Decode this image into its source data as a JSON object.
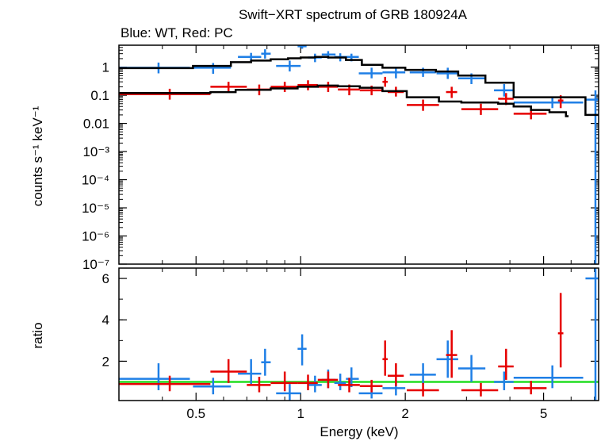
{
  "chart_data": {
    "type": "scatter",
    "title": "Swift−XRT spectrum of GRB 180924A",
    "subtitle": "Blue: WT, Red: PC",
    "xlabel": "Energy (keV)",
    "x_scale": "log",
    "xlim": [
      0.3,
      7.2
    ],
    "x_ticks": [
      {
        "value": 0.5,
        "label": "0.5"
      },
      {
        "value": 1,
        "label": "1"
      },
      {
        "value": 2,
        "label": "2"
      },
      {
        "value": 5,
        "label": "5"
      }
    ],
    "panels": [
      {
        "name": "spectrum",
        "ylabel": "counts s⁻¹ keV⁻¹",
        "y_scale": "log",
        "ylim": [
          1e-07,
          6
        ],
        "y_ticks": [
          {
            "value": 1,
            "label": "1"
          },
          {
            "value": 0.1,
            "label": "0.1"
          },
          {
            "value": 0.01,
            "label": "0.01"
          },
          {
            "value": 0.001,
            "label": "10⁻³"
          },
          {
            "value": 0.0001,
            "label": "10⁻⁴"
          },
          {
            "value": 1e-05,
            "label": "10⁻⁵"
          },
          {
            "value": 1e-06,
            "label": "10⁻⁶"
          },
          {
            "value": 1e-07,
            "label": "10⁻⁷"
          }
        ],
        "series": [
          {
            "color": "#1f7fe6",
            "points": [
              {
                "x": 0.39,
                "x_lo": 0.3,
                "x_hi": 0.48,
                "y": 0.95,
                "y_lo": 0.6,
                "y_hi": 1.45
              },
              {
                "x": 0.56,
                "x_lo": 0.49,
                "x_hi": 0.63,
                "y": 0.95,
                "y_lo": 0.58,
                "y_hi": 1.4
              },
              {
                "x": 0.72,
                "x_lo": 0.66,
                "x_hi": 0.77,
                "y": 2.3,
                "y_lo": 1.6,
                "y_hi": 3.2
              },
              {
                "x": 0.79,
                "x_lo": 0.77,
                "x_hi": 0.82,
                "y": 3.0,
                "y_lo": 2.0,
                "y_hi": 4.3
              },
              {
                "x": 0.93,
                "x_lo": 0.85,
                "x_hi": 1.0,
                "y": 1.1,
                "y_lo": 0.7,
                "y_hi": 1.7
              },
              {
                "x": 1.01,
                "x_lo": 0.98,
                "x_hi": 1.04,
                "y": 5.5,
                "y_lo": 4.5,
                "y_hi": 6.5
              },
              {
                "x": 1.1,
                "x_lo": 1.05,
                "x_hi": 1.15,
                "y": 2.2,
                "y_lo": 1.5,
                "y_hi": 3.0
              },
              {
                "x": 1.2,
                "x_lo": 1.15,
                "x_hi": 1.26,
                "y": 2.8,
                "y_lo": 2.0,
                "y_hi": 3.7
              },
              {
                "x": 1.3,
                "x_lo": 1.25,
                "x_hi": 1.35,
                "y": 2.3,
                "y_lo": 1.6,
                "y_hi": 3.1
              },
              {
                "x": 1.4,
                "x_lo": 1.35,
                "x_hi": 1.47,
                "y": 2.3,
                "y_lo": 1.6,
                "y_hi": 3.0
              },
              {
                "x": 1.6,
                "x_lo": 1.47,
                "x_hi": 1.72,
                "y": 0.6,
                "y_lo": 0.4,
                "y_hi": 0.95
              },
              {
                "x": 1.88,
                "x_lo": 1.72,
                "x_hi": 2.0,
                "y": 0.65,
                "y_lo": 0.4,
                "y_hi": 1.0
              },
              {
                "x": 2.25,
                "x_lo": 2.06,
                "x_hi": 2.45,
                "y": 0.65,
                "y_lo": 0.45,
                "y_hi": 0.95
              },
              {
                "x": 2.65,
                "x_lo": 2.46,
                "x_hi": 2.84,
                "y": 0.6,
                "y_lo": 0.38,
                "y_hi": 0.95
              },
              {
                "x": 3.1,
                "x_lo": 2.84,
                "x_hi": 3.4,
                "y": 0.4,
                "y_lo": 0.25,
                "y_hi": 0.6
              },
              {
                "x": 3.85,
                "x_lo": 3.6,
                "x_hi": 4.1,
                "y": 0.15,
                "y_lo": 0.09,
                "y_hi": 0.25
              },
              {
                "x": 5.3,
                "x_lo": 4.1,
                "x_hi": 6.5,
                "y": 0.055,
                "y_lo": 0.035,
                "y_hi": 0.085
              },
              {
                "x": 7.05,
                "x_lo": 6.6,
                "x_hi": 7.2,
                "y": 0.07,
                "y_lo": 1e-07,
                "y_hi": 0.15
              }
            ]
          },
          {
            "color": "#e60000",
            "points": [
              {
                "x": 0.42,
                "x_lo": 0.3,
                "x_hi": 0.55,
                "y": 0.11,
                "y_lo": 0.07,
                "y_hi": 0.17
              },
              {
                "x": 0.62,
                "x_lo": 0.55,
                "x_hi": 0.7,
                "y": 0.2,
                "y_lo": 0.13,
                "y_hi": 0.3
              },
              {
                "x": 0.76,
                "x_lo": 0.7,
                "x_hi": 0.82,
                "y": 0.16,
                "y_lo": 0.1,
                "y_hi": 0.24
              },
              {
                "x": 0.9,
                "x_lo": 0.82,
                "x_hi": 0.98,
                "y": 0.2,
                "y_lo": 0.13,
                "y_hi": 0.3
              },
              {
                "x": 1.05,
                "x_lo": 0.98,
                "x_hi": 1.12,
                "y": 0.23,
                "y_lo": 0.15,
                "y_hi": 0.34
              },
              {
                "x": 1.2,
                "x_lo": 1.12,
                "x_hi": 1.28,
                "y": 0.2,
                "y_lo": 0.13,
                "y_hi": 0.3
              },
              {
                "x": 1.38,
                "x_lo": 1.28,
                "x_hi": 1.48,
                "y": 0.16,
                "y_lo": 0.1,
                "y_hi": 0.24
              },
              {
                "x": 1.6,
                "x_lo": 1.48,
                "x_hi": 1.72,
                "y": 0.15,
                "y_lo": 0.1,
                "y_hi": 0.22
              },
              {
                "x": 1.75,
                "x_lo": 1.72,
                "x_hi": 1.78,
                "y": 0.3,
                "y_lo": 0.2,
                "y_hi": 0.45
              },
              {
                "x": 1.88,
                "x_lo": 1.78,
                "x_hi": 1.98,
                "y": 0.13,
                "y_lo": 0.09,
                "y_hi": 0.2
              },
              {
                "x": 2.25,
                "x_lo": 2.02,
                "x_hi": 2.5,
                "y": 0.045,
                "y_lo": 0.028,
                "y_hi": 0.07
              },
              {
                "x": 2.72,
                "x_lo": 2.62,
                "x_hi": 2.82,
                "y": 0.13,
                "y_lo": 0.08,
                "y_hi": 0.2
              },
              {
                "x": 3.3,
                "x_lo": 2.9,
                "x_hi": 3.7,
                "y": 0.032,
                "y_lo": 0.02,
                "y_hi": 0.05
              },
              {
                "x": 3.9,
                "x_lo": 3.7,
                "x_hi": 4.1,
                "y": 0.075,
                "y_lo": 0.045,
                "y_hi": 0.12
              },
              {
                "x": 4.6,
                "x_lo": 4.1,
                "x_hi": 5.1,
                "y": 0.022,
                "y_lo": 0.014,
                "y_hi": 0.035
              },
              {
                "x": 5.6,
                "x_lo": 5.5,
                "x_hi": 5.7,
                "y": 0.065,
                "y_lo": 0.035,
                "y_hi": 0.1
              }
            ]
          },
          {
            "type": "step",
            "color": "#000000",
            "points": [
              [
                0.3,
                0.92
              ],
              [
                0.49,
                1.1
              ],
              [
                0.63,
                1.5
              ],
              [
                0.72,
                1.7
              ],
              [
                0.82,
                1.9
              ],
              [
                0.92,
                2.05
              ],
              [
                1.0,
                2.2
              ],
              [
                1.1,
                2.3
              ],
              [
                1.2,
                2.2
              ],
              [
                1.35,
                1.8
              ],
              [
                1.5,
                1.2
              ],
              [
                1.72,
                0.95
              ],
              [
                2.0,
                0.8
              ],
              [
                2.45,
                0.7
              ],
              [
                2.84,
                0.5
              ],
              [
                3.4,
                0.28
              ],
              [
                4.1,
                0.085
              ],
              [
                6.6,
                0.02
              ],
              [
                7.2,
                0.02
              ]
            ]
          },
          {
            "type": "step",
            "color": "#000000",
            "points": [
              [
                0.3,
                0.12
              ],
              [
                0.55,
                0.13
              ],
              [
                0.65,
                0.155
              ],
              [
                0.82,
                0.175
              ],
              [
                0.98,
                0.2
              ],
              [
                1.12,
                0.22
              ],
              [
                1.28,
                0.21
              ],
              [
                1.48,
                0.185
              ],
              [
                1.72,
                0.14
              ],
              [
                2.02,
                0.085
              ],
              [
                2.5,
                0.06
              ],
              [
                2.9,
                0.055
              ],
              [
                3.7,
                0.05
              ],
              [
                4.1,
                0.04
              ],
              [
                4.6,
                0.03
              ],
              [
                5.2,
                0.025
              ],
              [
                5.8,
                0.018
              ],
              [
                5.9,
                0.018
              ]
            ]
          }
        ]
      },
      {
        "name": "ratio",
        "ylabel": "ratio",
        "y_scale": "linear",
        "ylim": [
          0.1,
          6.5
        ],
        "y_ticks": [
          {
            "value": 2,
            "label": "2"
          },
          {
            "value": 4,
            "label": "4"
          },
          {
            "value": 6,
            "label": "6"
          }
        ],
        "reference_line": {
          "y": 1.0,
          "color": "#22dd22"
        },
        "series": [
          {
            "color": "#1f7fe6",
            "points": [
              {
                "x": 0.39,
                "x_lo": 0.3,
                "x_hi": 0.48,
                "y": 1.15,
                "y_lo": 0.6,
                "y_hi": 1.9
              },
              {
                "x": 0.56,
                "x_lo": 0.49,
                "x_hi": 0.63,
                "y": 0.78,
                "y_lo": 0.4,
                "y_hi": 1.2
              },
              {
                "x": 0.72,
                "x_lo": 0.66,
                "x_hi": 0.77,
                "y": 1.4,
                "y_lo": 0.9,
                "y_hi": 2.1
              },
              {
                "x": 0.79,
                "x_lo": 0.77,
                "x_hi": 0.82,
                "y": 1.95,
                "y_lo": 1.3,
                "y_hi": 2.6
              },
              {
                "x": 0.93,
                "x_lo": 0.85,
                "x_hi": 1.0,
                "y": 0.45,
                "y_lo": 0.1,
                "y_hi": 0.9
              },
              {
                "x": 1.01,
                "x_lo": 0.98,
                "x_hi": 1.04,
                "y": 2.6,
                "y_lo": 1.8,
                "y_hi": 3.3
              },
              {
                "x": 1.1,
                "x_lo": 1.05,
                "x_hi": 1.15,
                "y": 0.85,
                "y_lo": 0.5,
                "y_hi": 1.3
              },
              {
                "x": 1.2,
                "x_lo": 1.15,
                "x_hi": 1.26,
                "y": 1.1,
                "y_lo": 0.7,
                "y_hi": 1.6
              },
              {
                "x": 1.3,
                "x_lo": 1.25,
                "x_hi": 1.35,
                "y": 0.95,
                "y_lo": 0.6,
                "y_hi": 1.4
              },
              {
                "x": 1.4,
                "x_lo": 1.35,
                "x_hi": 1.47,
                "y": 1.15,
                "y_lo": 0.75,
                "y_hi": 1.7
              },
              {
                "x": 1.6,
                "x_lo": 1.47,
                "x_hi": 1.72,
                "y": 0.45,
                "y_lo": 0.2,
                "y_hi": 0.8
              },
              {
                "x": 1.88,
                "x_lo": 1.72,
                "x_hi": 2.0,
                "y": 0.7,
                "y_lo": 0.35,
                "y_hi": 1.1
              },
              {
                "x": 2.25,
                "x_lo": 2.06,
                "x_hi": 2.45,
                "y": 1.35,
                "y_lo": 0.9,
                "y_hi": 1.9
              },
              {
                "x": 2.65,
                "x_lo": 2.46,
                "x_hi": 2.84,
                "y": 2.1,
                "y_lo": 1.2,
                "y_hi": 3.0
              },
              {
                "x": 3.1,
                "x_lo": 2.84,
                "x_hi": 3.4,
                "y": 1.65,
                "y_lo": 1.0,
                "y_hi": 2.3
              },
              {
                "x": 3.85,
                "x_lo": 3.6,
                "x_hi": 4.1,
                "y": 1.0,
                "y_lo": 0.6,
                "y_hi": 1.5
              },
              {
                "x": 5.3,
                "x_lo": 4.1,
                "x_hi": 6.5,
                "y": 1.2,
                "y_lo": 0.7,
                "y_hi": 1.8
              },
              {
                "x": 7.05,
                "x_lo": 6.6,
                "x_hi": 7.2,
                "y": 6.0,
                "y_lo": 0.1,
                "y_hi": 6.5
              }
            ]
          },
          {
            "color": "#e60000",
            "points": [
              {
                "x": 0.42,
                "x_lo": 0.3,
                "x_hi": 0.55,
                "y": 0.9,
                "y_lo": 0.55,
                "y_hi": 1.3
              },
              {
                "x": 0.62,
                "x_lo": 0.55,
                "x_hi": 0.7,
                "y": 1.5,
                "y_lo": 0.95,
                "y_hi": 2.1
              },
              {
                "x": 0.76,
                "x_lo": 0.7,
                "x_hi": 0.82,
                "y": 0.85,
                "y_lo": 0.5,
                "y_hi": 1.25
              },
              {
                "x": 0.9,
                "x_lo": 0.82,
                "x_hi": 0.98,
                "y": 0.95,
                "y_lo": 0.55,
                "y_hi": 1.5
              },
              {
                "x": 1.05,
                "x_lo": 0.98,
                "x_hi": 1.12,
                "y": 0.95,
                "y_lo": 0.6,
                "y_hi": 1.35
              },
              {
                "x": 1.2,
                "x_lo": 1.12,
                "x_hi": 1.28,
                "y": 1.1,
                "y_lo": 0.7,
                "y_hi": 1.5
              },
              {
                "x": 1.38,
                "x_lo": 1.28,
                "x_hi": 1.48,
                "y": 0.85,
                "y_lo": 0.5,
                "y_hi": 1.2
              },
              {
                "x": 1.6,
                "x_lo": 1.48,
                "x_hi": 1.72,
                "y": 0.8,
                "y_lo": 0.5,
                "y_hi": 1.1
              },
              {
                "x": 1.75,
                "x_lo": 1.72,
                "x_hi": 1.78,
                "y": 2.1,
                "y_lo": 1.3,
                "y_hi": 3.0
              },
              {
                "x": 1.88,
                "x_lo": 1.78,
                "x_hi": 1.98,
                "y": 1.3,
                "y_lo": 0.8,
                "y_hi": 1.9
              },
              {
                "x": 2.25,
                "x_lo": 2.02,
                "x_hi": 2.5,
                "y": 0.6,
                "y_lo": 0.3,
                "y_hi": 0.95
              },
              {
                "x": 2.72,
                "x_lo": 2.62,
                "x_hi": 2.82,
                "y": 2.3,
                "y_lo": 1.2,
                "y_hi": 3.5
              },
              {
                "x": 3.3,
                "x_lo": 2.9,
                "x_hi": 3.7,
                "y": 0.6,
                "y_lo": 0.3,
                "y_hi": 0.95
              },
              {
                "x": 3.9,
                "x_lo": 3.7,
                "x_hi": 4.1,
                "y": 1.75,
                "y_lo": 1.1,
                "y_hi": 2.6
              },
              {
                "x": 4.6,
                "x_lo": 4.1,
                "x_hi": 5.1,
                "y": 0.7,
                "y_lo": 0.4,
                "y_hi": 1.05
              },
              {
                "x": 5.6,
                "x_lo": 5.5,
                "x_hi": 5.7,
                "y": 3.35,
                "y_lo": 1.7,
                "y_hi": 5.3
              }
            ]
          }
        ]
      }
    ]
  }
}
